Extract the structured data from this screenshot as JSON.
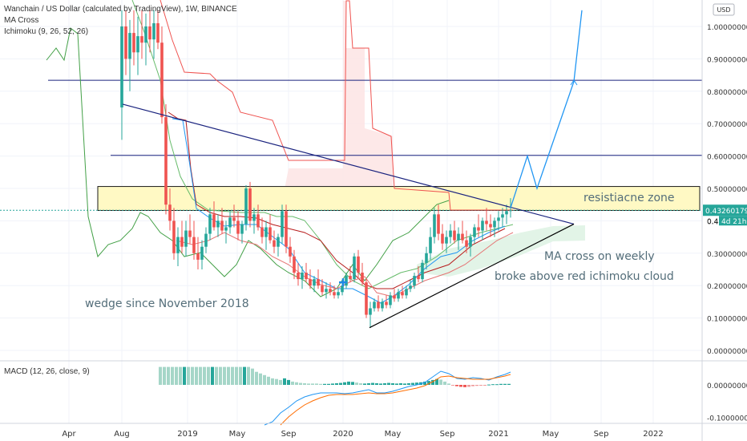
{
  "header": {
    "title": "Wanchain / US Dollar (calculated by TradingView), 1W, BINANCE",
    "indicators": [
      "MA Cross",
      "Ichimoku (9, 26, 52, 26)"
    ],
    "currency": "USD"
  },
  "macd": {
    "label": "MACD (12, 26, close, 9)"
  },
  "annotations": {
    "resistance": "resistiacne zone",
    "ma_cross": "MA cross on weekly",
    "cloud": "broke above red ichimoku cloud",
    "wedge": "wedge since November 2018"
  },
  "price_tag": {
    "value": "0.43260179",
    "countdown": "4d 21h",
    "partial": "0.40"
  },
  "colors": {
    "up": "#26a69a",
    "down": "#ef5350",
    "conv": "#2196f3",
    "base": "#b71c1c",
    "lagging": "#43a047",
    "lines": "#1a237e",
    "projection": "#2196f3",
    "zone": "#fff9c4"
  },
  "chart_data": [
    {
      "type": "candlestick",
      "title": "Wanchain / US Dollar (calculated by TradingView), 1W, BINANCE",
      "x_ticks": [
        "Apr",
        "Aug",
        "2019",
        "May",
        "Sep",
        "2020",
        "May",
        "Sep",
        "2021",
        "May",
        "Sep",
        "2022"
      ],
      "y_ticks": [
        "1.00000000",
        "0.90000000",
        "0.80000000",
        "0.70000000",
        "0.60000000",
        "0.50000000",
        "0.40000000",
        "0.30000000",
        "0.20000000",
        "0.10000000",
        "0.00000000"
      ],
      "ylim": [
        0,
        1.05
      ],
      "last_price": 0.43260179,
      "horizontal_levels": [
        0.834,
        0.602,
        0.432
      ],
      "resistance_zone": [
        0.432,
        0.506
      ],
      "wedge": {
        "upper": [
          [
            "Nov 2018",
            0.76
          ],
          [
            "Jun 2021",
            0.39
          ]
        ],
        "lower": [
          [
            "Feb 2020",
            0.07
          ],
          [
            "Jun 2021",
            0.39
          ]
        ]
      },
      "projection": [
        [
          "Feb 2021",
          0.44
        ],
        [
          "Mar 2021",
          0.6
        ],
        [
          "Apr 2021",
          0.5
        ],
        [
          "Jun 2021",
          0.83
        ],
        [
          "Jul 2021",
          1.05
        ]
      ],
      "ma_cross_points": [
        [
          "Apr 2019",
          0.38
        ],
        [
          "Jun 2019",
          0.38
        ],
        [
          "Jan 2020",
          0.21
        ],
        [
          "Apr 2020",
          0.17
        ],
        [
          "Jul 2020",
          0.19
        ],
        [
          "Oct 2020",
          0.29
        ]
      ]
    },
    {
      "type": "bar",
      "title": "MACD (12, 26, close, 9)",
      "y_ticks": [
        "0.00000000",
        "-0.10000000"
      ],
      "ylim": [
        -0.115,
        0.055
      ]
    }
  ]
}
